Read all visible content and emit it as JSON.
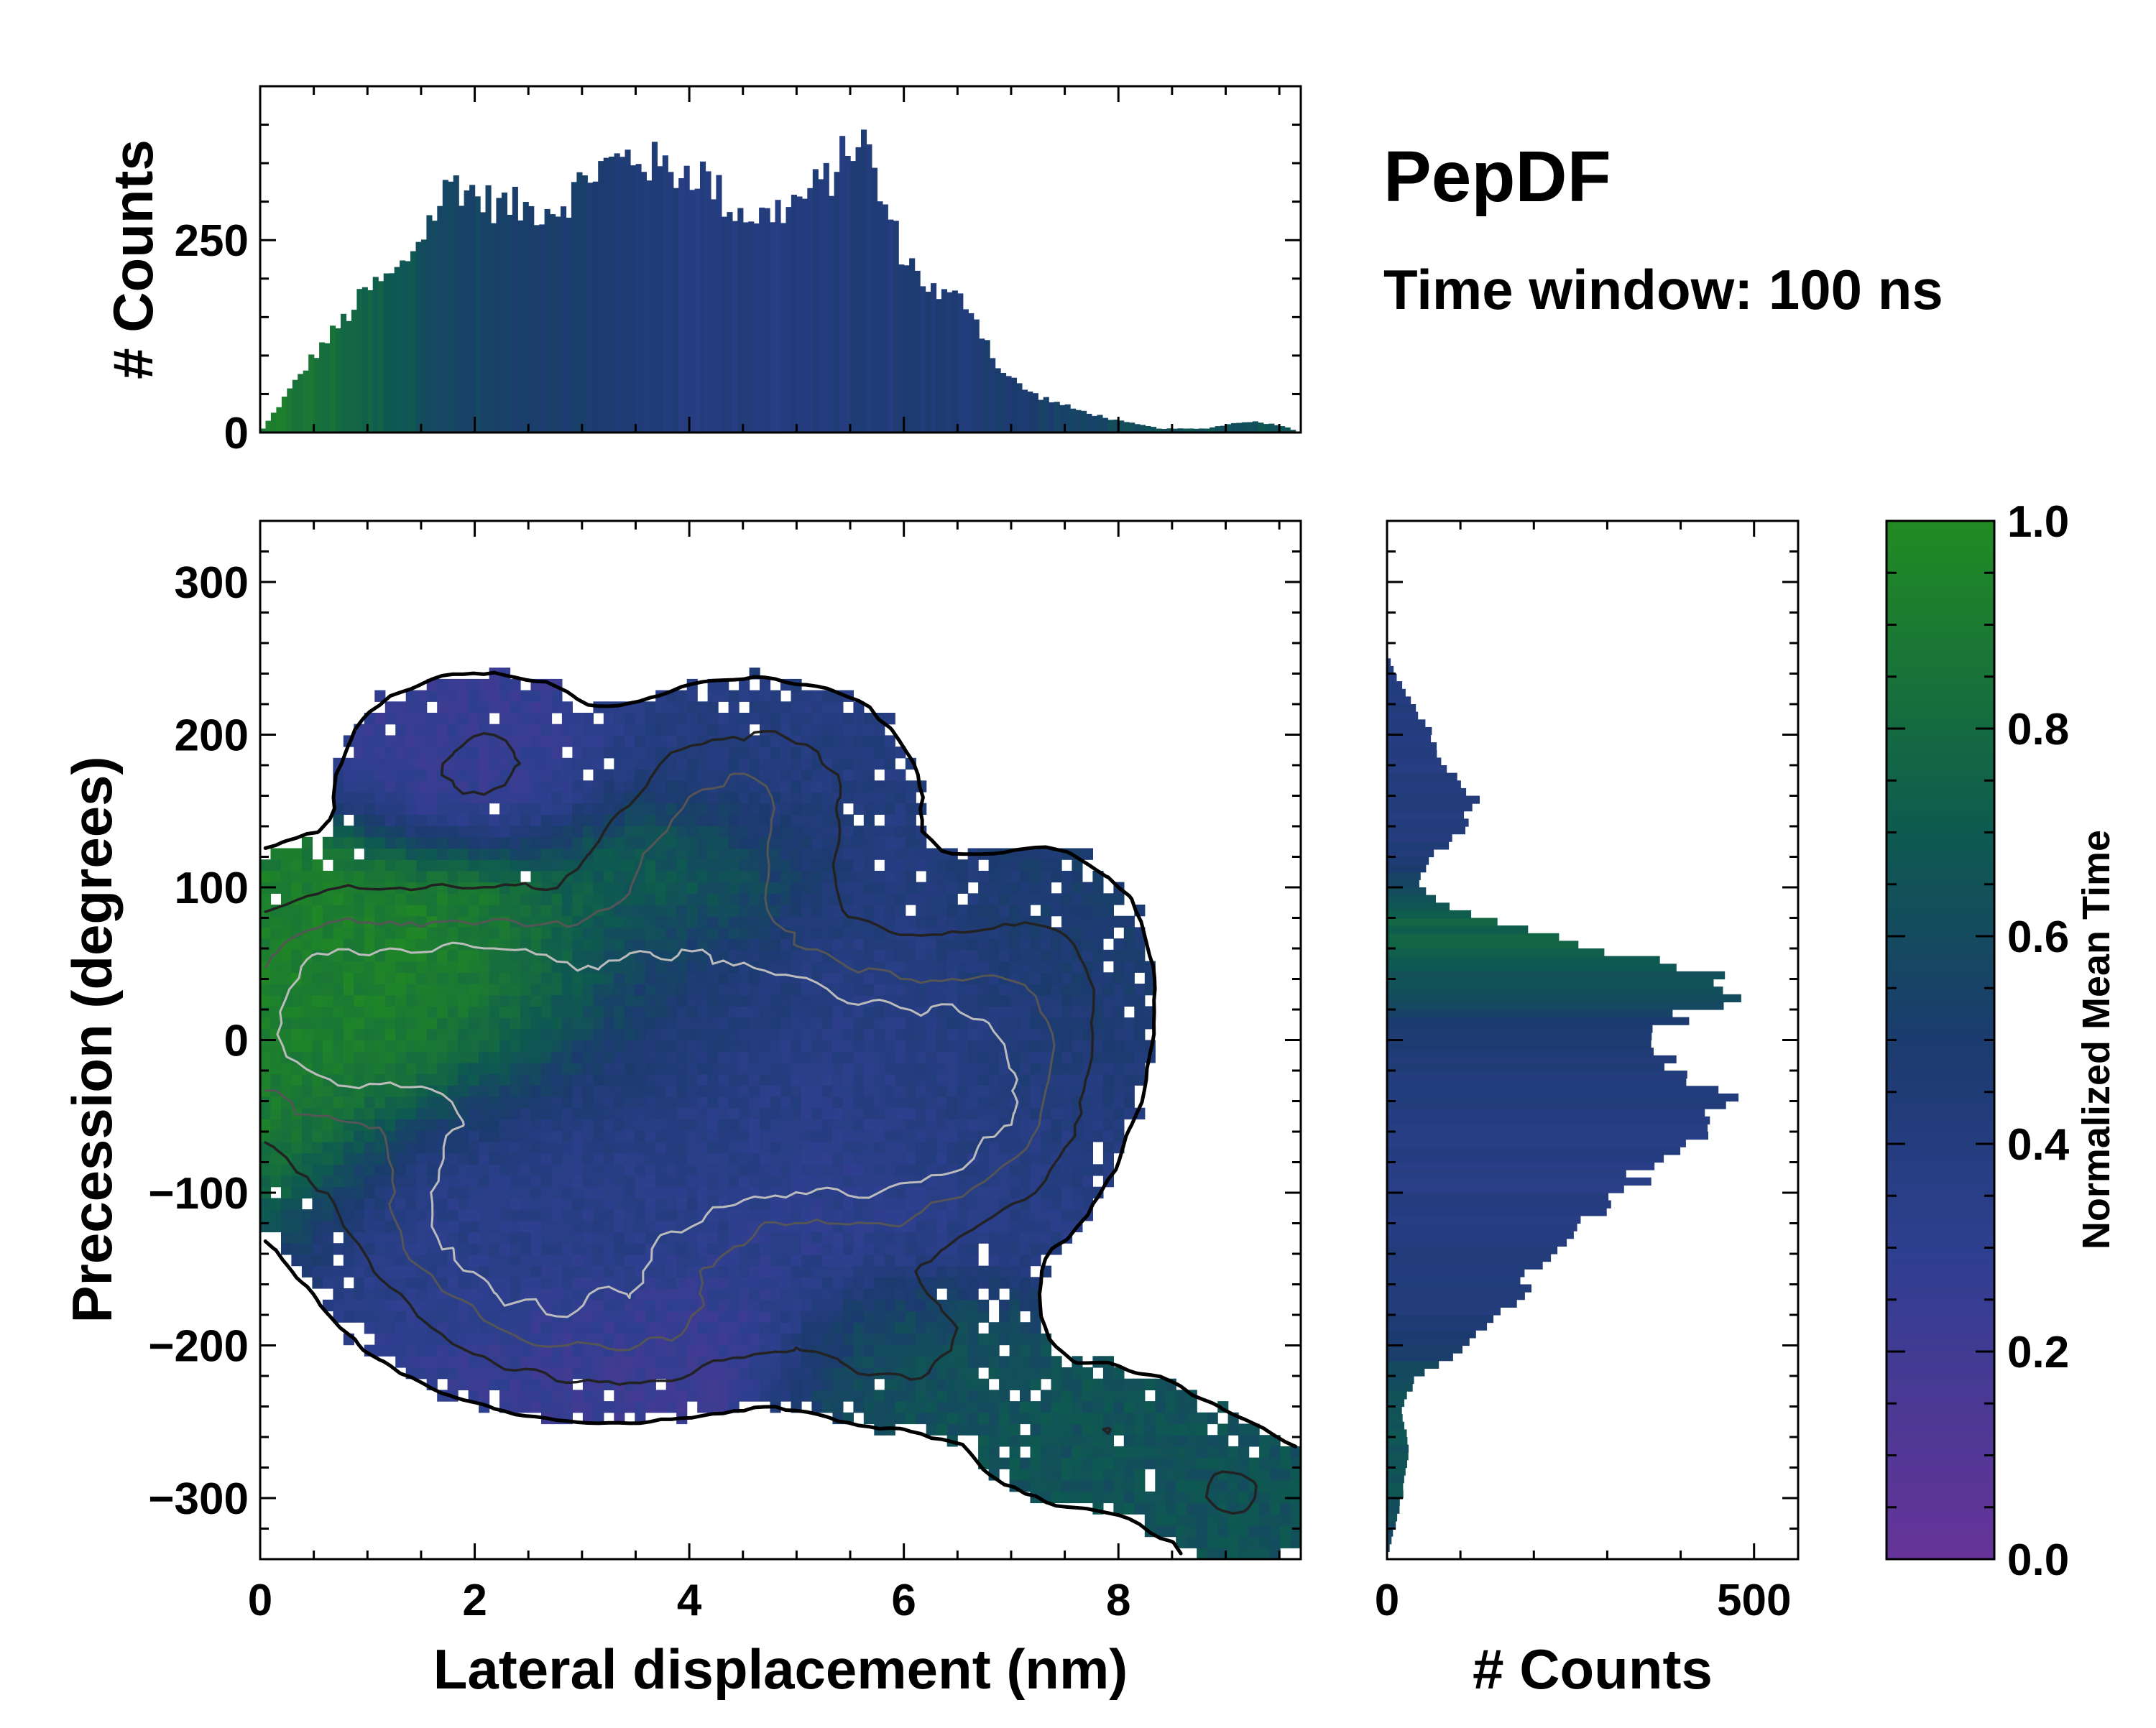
{
  "colors": {
    "low": "#663399",
    "mid_low": "#2e3f8f",
    "mid": "#1b3b6e",
    "mid_high": "#0e5a50",
    "high": "#228b22",
    "frame": "#000000",
    "contour_dark": "#222222",
    "contour_mid": "#555555",
    "contour_light": "#bbbbbb",
    "background": "#ffffff"
  },
  "chart_data": [
    {
      "id": "joint-2d-histogram",
      "type": "heatmap",
      "title": "PepDF",
      "subtitle": "Time window: 100 ns",
      "xlabel": "Lateral displacement (nm)",
      "ylabel": "Precession (degrees)",
      "xlim": [
        0,
        9.7
      ],
      "ylim": [
        -340,
        340
      ],
      "xticks": [
        0,
        2,
        4,
        6,
        8
      ],
      "yticks": [
        300,
        200,
        100,
        0,
        -100,
        -200,
        -300
      ],
      "ytick_labels": [
        "300",
        "200",
        "100",
        "0",
        "−100",
        "−200",
        "−300"
      ],
      "color_meaning": "Normalized Mean Time",
      "density_regions": [
        {
          "x": 1.7,
          "y": 25,
          "sx": 1.1,
          "sy": 45,
          "w": 1.0,
          "t": 0.95
        },
        {
          "x": 0.4,
          "y": 0,
          "sx": 0.6,
          "sy": 60,
          "w": 0.5,
          "t": 0.9
        },
        {
          "x": 3.2,
          "y": -70,
          "sx": 1.0,
          "sy": 60,
          "w": 0.9,
          "t": 0.35
        },
        {
          "x": 2.3,
          "y": -120,
          "sx": 0.9,
          "sy": 45,
          "w": 0.8,
          "t": 0.35
        },
        {
          "x": 4.2,
          "y": 10,
          "sx": 1.0,
          "sy": 55,
          "w": 0.75,
          "t": 0.45
        },
        {
          "x": 5.5,
          "y": -50,
          "sx": 1.0,
          "sy": 60,
          "w": 0.85,
          "t": 0.3
        },
        {
          "x": 6.5,
          "y": -30,
          "sx": 0.7,
          "sy": 50,
          "w": 0.6,
          "t": 0.45
        },
        {
          "x": 4.6,
          "y": 160,
          "sx": 0.8,
          "sy": 40,
          "w": 0.5,
          "t": 0.4
        },
        {
          "x": 4.0,
          "y": 110,
          "sx": 0.6,
          "sy": 30,
          "w": 0.4,
          "t": 0.85
        },
        {
          "x": 2.0,
          "y": 180,
          "sx": 0.7,
          "sy": 35,
          "w": 0.35,
          "t": 0.25
        },
        {
          "x": 7.3,
          "y": 40,
          "sx": 0.6,
          "sy": 50,
          "w": 0.3,
          "t": 0.5
        },
        {
          "x": 3.4,
          "y": -190,
          "sx": 1.0,
          "sy": 30,
          "w": 0.45,
          "t": 0.2
        },
        {
          "x": 6.0,
          "y": -200,
          "sx": 0.7,
          "sy": 30,
          "w": 0.35,
          "t": 0.65
        },
        {
          "x": 7.8,
          "y": -260,
          "sx": 0.7,
          "sy": 28,
          "w": 0.3,
          "t": 0.65
        },
        {
          "x": 9.1,
          "y": -300,
          "sx": 0.5,
          "sy": 25,
          "w": 0.3,
          "t": 0.65
        }
      ]
    },
    {
      "id": "top-marginal-histogram",
      "type": "bar",
      "ylabel": "# Counts",
      "xlim": [
        0,
        9.7
      ],
      "ylim": [
        0,
        450
      ],
      "yticks": [
        0,
        250
      ],
      "bin_width_nm": 0.05,
      "profile_x": [
        0,
        0.2,
        0.5,
        0.8,
        1.0,
        1.3,
        1.6,
        1.8,
        2.1,
        2.5,
        2.8,
        3.1,
        3.5,
        3.8,
        4.1,
        4.4,
        4.7,
        5.0,
        5.3,
        5.6,
        5.8,
        6.0,
        6.3,
        6.6,
        6.9,
        7.2,
        7.6,
        8.0,
        8.4,
        8.8,
        9.2,
        9.5,
        9.7
      ],
      "profile_y": [
        0,
        40,
        100,
        150,
        185,
        210,
        280,
        330,
        300,
        290,
        295,
        340,
        360,
        340,
        340,
        290,
        280,
        300,
        330,
        390,
        300,
        230,
        180,
        170,
        80,
        50,
        30,
        15,
        5,
        5,
        15,
        10,
        0
      ],
      "profile_t": [
        0.9,
        0.9,
        0.85,
        0.8,
        0.75,
        0.7,
        0.62,
        0.55,
        0.55,
        0.5,
        0.5,
        0.5,
        0.45,
        0.42,
        0.4,
        0.4,
        0.4,
        0.42,
        0.42,
        0.42,
        0.42,
        0.45,
        0.45,
        0.45,
        0.5,
        0.5,
        0.55,
        0.6,
        0.65,
        0.65,
        0.65,
        0.65,
        0.65
      ]
    },
    {
      "id": "right-marginal-histogram",
      "type": "bar",
      "orientation": "horizontal",
      "xlabel": "# Counts",
      "xlim": [
        0,
        560
      ],
      "xticks": [
        0,
        500
      ],
      "ylim": [
        -340,
        340
      ],
      "bin_width_deg": 5,
      "profile_y": [
        255,
        240,
        200,
        180,
        160,
        140,
        120,
        100,
        80,
        65,
        55,
        45,
        40,
        30,
        20,
        10,
        0,
        -10,
        -20,
        -30,
        -40,
        -50,
        -60,
        -80,
        -100,
        -120,
        -150,
        -180,
        -200,
        -220,
        -240,
        -270,
        -300,
        -320,
        -340
      ],
      "profile_c": [
        0,
        10,
        60,
        70,
        120,
        110,
        60,
        40,
        120,
        250,
        330,
        410,
        470,
        490,
        420,
        380,
        350,
        360,
        400,
        450,
        480,
        460,
        420,
        380,
        310,
        260,
        200,
        160,
        110,
        40,
        20,
        30,
        20,
        10,
        0
      ],
      "profile_t": [
        0.4,
        0.4,
        0.4,
        0.4,
        0.4,
        0.4,
        0.45,
        0.6,
        0.75,
        0.75,
        0.7,
        0.68,
        0.65,
        0.6,
        0.55,
        0.5,
        0.5,
        0.45,
        0.42,
        0.4,
        0.4,
        0.4,
        0.4,
        0.38,
        0.38,
        0.4,
        0.42,
        0.45,
        0.5,
        0.6,
        0.65,
        0.65,
        0.65,
        0.6,
        0.6
      ]
    },
    {
      "id": "colorbar",
      "type": "colorbar",
      "label": "Normalized Mean Time",
      "range": [
        0.0,
        1.0
      ],
      "ticks": [
        0.0,
        0.2,
        0.4,
        0.6,
        0.8,
        1.0
      ],
      "tick_labels": [
        "0.0",
        "0.2",
        "0.4",
        "0.6",
        "0.8",
        "1.0"
      ]
    }
  ]
}
